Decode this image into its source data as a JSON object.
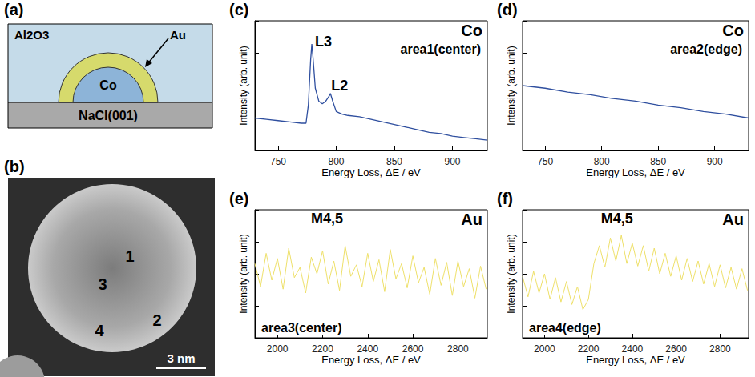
{
  "schematic": {
    "panel": "(a)",
    "matrix": "Al2O3",
    "substrate": "NaCl(001)",
    "core": "Co",
    "shell": "Au"
  },
  "image": {
    "panel": "(b)",
    "areas": [
      "1",
      "2",
      "3",
      "4"
    ],
    "scale_bar": "3 nm"
  },
  "chart_data": [
    {
      "type": "line",
      "panel": "(c)",
      "title": "Co",
      "subtitle": "area1(center)",
      "x": [
        730,
        740,
        750,
        760,
        770,
        774,
        776,
        778,
        779,
        780,
        782,
        785,
        788,
        791,
        794,
        795,
        797,
        800,
        805,
        810,
        820,
        830,
        840,
        850,
        860,
        870,
        880,
        890,
        900,
        910,
        920,
        930
      ],
      "values": [
        25,
        24,
        23,
        22,
        21,
        21,
        35,
        70,
        82,
        72,
        48,
        38,
        36,
        38,
        42,
        44,
        38,
        30,
        28,
        27,
        26,
        24,
        22,
        20,
        18,
        16,
        14,
        13,
        11,
        10,
        9,
        8
      ],
      "color": "#2f4f9f",
      "xlim": [
        730,
        930
      ],
      "xticks": [
        750,
        800,
        850,
        900
      ],
      "ylim": [
        0,
        100
      ],
      "yticks": [
        0,
        25,
        50,
        75,
        100
      ],
      "x_label": "Energy Loss, ΔE / eV",
      "y_label": "Intensity (arb. unit)",
      "tick_labels": "x",
      "grid": false,
      "annotations": [
        {
          "text": "L3",
          "x": 789,
          "y": 84
        },
        {
          "text": "L2",
          "x": 803,
          "y": 50
        }
      ]
    },
    {
      "type": "line",
      "panel": "(d)",
      "title": "Co",
      "subtitle": "area2(edge)",
      "x": [
        730,
        750,
        770,
        790,
        810,
        830,
        850,
        870,
        890,
        910,
        930
      ],
      "values": [
        50,
        48,
        45,
        43,
        40,
        38,
        35,
        33,
        30,
        28,
        25
      ],
      "color": "#2f4f9f",
      "xlim": [
        730,
        930
      ],
      "xticks": [
        750,
        800,
        850,
        900
      ],
      "ylim": [
        0,
        100
      ],
      "yticks": [
        0,
        25,
        50,
        75,
        100
      ],
      "x_label": "Energy Loss, ΔE / eV",
      "y_label": "Intensity (arb. unit)",
      "tick_labels": "x",
      "grid": false,
      "annotations": []
    },
    {
      "type": "line",
      "panel": "(e)",
      "title": "Au",
      "subtitle": "area3(center)",
      "x": [
        1900,
        1925,
        1950,
        1975,
        2000,
        2025,
        2050,
        2075,
        2100,
        2125,
        2150,
        2175,
        2200,
        2225,
        2250,
        2275,
        2300,
        2325,
        2350,
        2375,
        2400,
        2425,
        2450,
        2475,
        2500,
        2525,
        2550,
        2575,
        2600,
        2625,
        2650,
        2675,
        2700,
        2725,
        2750,
        2775,
        2800,
        2825,
        2850,
        2875,
        2900,
        2925
      ],
      "values": [
        58,
        40,
        66,
        45,
        62,
        38,
        70,
        47,
        55,
        35,
        63,
        50,
        68,
        42,
        60,
        37,
        72,
        48,
        57,
        40,
        66,
        44,
        61,
        36,
        69,
        46,
        58,
        39,
        64,
        43,
        55,
        34,
        62,
        41,
        59,
        33,
        60,
        40,
        54,
        31,
        56,
        38
      ],
      "color": "#eee06a",
      "xlim": [
        1900,
        2930
      ],
      "xticks": [
        2000,
        2200,
        2400,
        2600,
        2800
      ],
      "ylim": [
        0,
        100
      ],
      "yticks": [
        0,
        25,
        50,
        75,
        100
      ],
      "x_label": "Energy Loss, ΔE / eV",
      "y_label": "Intensity (arb. unit)",
      "tick_labels": "x",
      "grid": false,
      "annotations": [
        {
          "text": "M4,5",
          "x": 2220,
          "y": 93
        }
      ]
    },
    {
      "type": "line",
      "panel": "(f)",
      "title": "Au",
      "subtitle": "area4(edge)",
      "x": [
        1900,
        1925,
        1950,
        1975,
        2000,
        2025,
        2050,
        2075,
        2100,
        2125,
        2150,
        2175,
        2200,
        2225,
        2250,
        2275,
        2300,
        2325,
        2350,
        2375,
        2400,
        2425,
        2450,
        2475,
        2500,
        2525,
        2550,
        2575,
        2600,
        2625,
        2650,
        2675,
        2700,
        2725,
        2750,
        2775,
        2800,
        2825,
        2850,
        2875,
        2900,
        2925
      ],
      "values": [
        48,
        32,
        52,
        35,
        50,
        30,
        47,
        28,
        44,
        26,
        40,
        22,
        30,
        58,
        72,
        55,
        78,
        60,
        80,
        58,
        74,
        56,
        72,
        52,
        70,
        50,
        66,
        48,
        64,
        45,
        62,
        44,
        60,
        42,
        58,
        40,
        57,
        39,
        55,
        38,
        54,
        37
      ],
      "color": "#eee06a",
      "xlim": [
        1900,
        2930
      ],
      "xticks": [
        2000,
        2200,
        2400,
        2600,
        2800
      ],
      "ylim": [
        0,
        100
      ],
      "yticks": [
        0,
        25,
        50,
        75,
        100
      ],
      "x_label": "Energy Loss, ΔE / eV",
      "y_label": "Intensity (arb. unit)",
      "tick_labels": "x",
      "grid": false,
      "annotations": [
        {
          "text": "M4,5",
          "x": 2330,
          "y": 93
        }
      ]
    }
  ]
}
